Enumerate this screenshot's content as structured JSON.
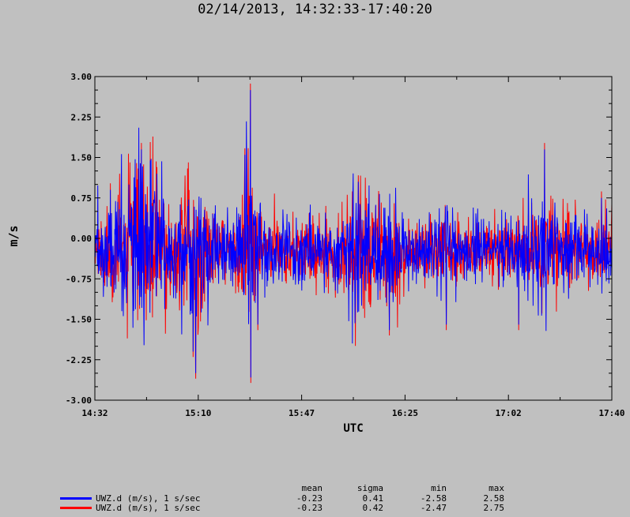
{
  "chart_data": {
    "type": "line",
    "title": "02/14/2013, 14:32:33-17:40:20",
    "xlabel": "UTC",
    "ylabel": "m/s",
    "ylim": [
      -3.0,
      3.0
    ],
    "yticks": [
      "3.00",
      "2.25",
      "1.50",
      "0.75",
      "0.00",
      "-0.75",
      "-1.50",
      "-2.25",
      "-3.00"
    ],
    "yticks_values": [
      3.0,
      2.25,
      1.5,
      0.75,
      0.0,
      -0.75,
      -1.5,
      -2.25,
      -3.0
    ],
    "xticks": [
      "14:32",
      "15:10",
      "15:47",
      "16:25",
      "17:02",
      "17:40"
    ],
    "grid": false,
    "legend_position": "bottom-left",
    "series": [
      {
        "name": "UWZ.d (m/s), 1 s/sec",
        "color": "#ff0000",
        "mean": -0.23,
        "sigma": 0.42,
        "min": -2.47,
        "max": 2.75
      },
      {
        "name": "UWZ.d (m/s), 1 s/sec",
        "color": "#0000ff",
        "mean": -0.23,
        "sigma": 0.41,
        "min": -2.58,
        "max": 2.58
      }
    ],
    "envelope_peaks": [
      {
        "t": 0.03,
        "v": 0.9
      },
      {
        "t": 0.09,
        "v": 1.65
      },
      {
        "t": 0.12,
        "v": 1.2
      },
      {
        "t": 0.19,
        "v": -2.1
      },
      {
        "t": 0.195,
        "v": -2.5
      },
      {
        "t": 0.29,
        "v": 1.55
      },
      {
        "t": 0.301,
        "v": 2.75
      },
      {
        "t": 0.302,
        "v": -2.58
      },
      {
        "t": 0.315,
        "v": -1.6
      },
      {
        "t": 0.51,
        "v": 1.05
      },
      {
        "t": 0.57,
        "v": -1.7
      },
      {
        "t": 0.68,
        "v": -1.6
      },
      {
        "t": 0.87,
        "v": 1.65
      },
      {
        "t": 0.82,
        "v": -1.6
      },
      {
        "t": 0.98,
        "v": 0.75
      }
    ]
  },
  "stats_header": {
    "mean": "mean",
    "sigma": "sigma",
    "min": "min",
    "max": "max"
  },
  "legend": [
    {
      "label": "UWZ.d (m/s), 1 s/sec",
      "color": "#0000ff",
      "mean": "-0.23",
      "sigma": "0.41",
      "min": "-2.58",
      "max": "2.58"
    },
    {
      "label": "UWZ.d (m/s), 1 s/sec",
      "color": "#ff0000",
      "mean": "-0.23",
      "sigma": "0.42",
      "min": "-2.47",
      "max": "2.75"
    }
  ]
}
